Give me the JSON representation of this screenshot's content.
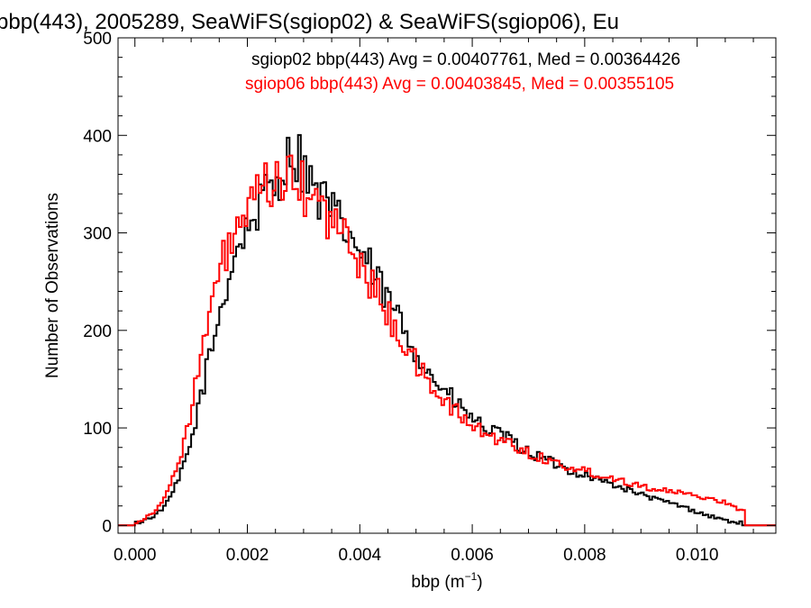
{
  "chart_data": {
    "type": "histogram",
    "title": "bbp(443), 2005289, SeaWiFS(sgiop02) & SeaWiFS(sgiop06), Eu",
    "xlabel": "bbp (m",
    "xlabel_sup": "−1",
    "xlabel_close": ")",
    "ylabel": "Number of Observations",
    "xlim": [
      -0.0003,
      0.0114
    ],
    "ylim": [
      -8,
      500
    ],
    "xticks": [
      0.0,
      0.002,
      0.004,
      0.006,
      0.008,
      0.01
    ],
    "xtick_labels": [
      "0.000",
      "0.002",
      "0.004",
      "0.006",
      "0.008",
      "0.010"
    ],
    "yticks": [
      0,
      100,
      200,
      300,
      400,
      500
    ],
    "ytick_labels": [
      "0",
      "100",
      "200",
      "300",
      "400",
      "500"
    ],
    "bin_width": 5e-05,
    "grid": false,
    "legend_position": "top-right",
    "series": [
      {
        "name": "sgiop02",
        "color": "#000000",
        "legend": "sgiop02 bbp(443) Avg = 0.00407761, Med = 0.00364426",
        "points": [
          [
            0.0,
            2
          ],
          [
            0.0002,
            6
          ],
          [
            0.0004,
            12
          ],
          [
            0.0006,
            25
          ],
          [
            0.0008,
            50
          ],
          [
            0.001,
            85
          ],
          [
            0.0012,
            140
          ],
          [
            0.0014,
            190
          ],
          [
            0.0016,
            240
          ],
          [
            0.0018,
            282
          ],
          [
            0.002,
            305
          ],
          [
            0.0022,
            325
          ],
          [
            0.0024,
            345
          ],
          [
            0.0026,
            362
          ],
          [
            0.0028,
            385
          ],
          [
            0.003,
            370
          ],
          [
            0.0032,
            340
          ],
          [
            0.0034,
            330
          ],
          [
            0.0036,
            312
          ],
          [
            0.0038,
            300
          ],
          [
            0.004,
            280
          ],
          [
            0.0042,
            262
          ],
          [
            0.0044,
            240
          ],
          [
            0.0046,
            222
          ],
          [
            0.0048,
            200
          ],
          [
            0.005,
            180
          ],
          [
            0.0052,
            158
          ],
          [
            0.0054,
            145
          ],
          [
            0.0056,
            132
          ],
          [
            0.0058,
            120
          ],
          [
            0.006,
            110
          ],
          [
            0.0062,
            100
          ],
          [
            0.0064,
            95
          ],
          [
            0.0066,
            90
          ],
          [
            0.0068,
            82
          ],
          [
            0.007,
            75
          ],
          [
            0.0072,
            70
          ],
          [
            0.0074,
            65
          ],
          [
            0.0076,
            60
          ],
          [
            0.0078,
            55
          ],
          [
            0.008,
            52
          ],
          [
            0.0082,
            48
          ],
          [
            0.0084,
            44
          ],
          [
            0.0086,
            40
          ],
          [
            0.0088,
            36
          ],
          [
            0.009,
            32
          ],
          [
            0.0092,
            28
          ],
          [
            0.0094,
            25
          ],
          [
            0.0096,
            22
          ],
          [
            0.0098,
            18
          ],
          [
            0.01,
            14
          ],
          [
            0.0102,
            10
          ],
          [
            0.0104,
            7
          ],
          [
            0.0106,
            4
          ],
          [
            0.0108,
            2
          ]
        ]
      },
      {
        "name": "sgiop06",
        "color": "#ff0000",
        "legend": "sgiop06 bbp(443) Avg = 0.00403845, Med = 0.00355105",
        "points": [
          [
            0.0,
            3
          ],
          [
            0.0002,
            8
          ],
          [
            0.0004,
            18
          ],
          [
            0.0006,
            35
          ],
          [
            0.0008,
            70
          ],
          [
            0.001,
            118
          ],
          [
            0.0012,
            180
          ],
          [
            0.0014,
            232
          ],
          [
            0.0016,
            278
          ],
          [
            0.0018,
            300
          ],
          [
            0.002,
            318
          ],
          [
            0.0022,
            335
          ],
          [
            0.0024,
            350
          ],
          [
            0.0026,
            355
          ],
          [
            0.0028,
            352
          ],
          [
            0.003,
            345
          ],
          [
            0.0032,
            332
          ],
          [
            0.0034,
            318
          ],
          [
            0.0036,
            305
          ],
          [
            0.0038,
            290
          ],
          [
            0.004,
            270
          ],
          [
            0.0042,
            248
          ],
          [
            0.0044,
            228
          ],
          [
            0.0046,
            206
          ],
          [
            0.0048,
            186
          ],
          [
            0.005,
            165
          ],
          [
            0.0052,
            148
          ],
          [
            0.0054,
            135
          ],
          [
            0.0056,
            122
          ],
          [
            0.0058,
            112
          ],
          [
            0.006,
            102
          ],
          [
            0.0062,
            95
          ],
          [
            0.0064,
            90
          ],
          [
            0.0066,
            86
          ],
          [
            0.0068,
            80
          ],
          [
            0.007,
            75
          ],
          [
            0.0072,
            70
          ],
          [
            0.0074,
            66
          ],
          [
            0.0076,
            62
          ],
          [
            0.0078,
            58
          ],
          [
            0.008,
            56
          ],
          [
            0.0082,
            53
          ],
          [
            0.0084,
            50
          ],
          [
            0.0086,
            47
          ],
          [
            0.0088,
            44
          ],
          [
            0.009,
            41
          ],
          [
            0.0092,
            38
          ],
          [
            0.0094,
            36
          ],
          [
            0.0096,
            34
          ],
          [
            0.0098,
            32
          ],
          [
            0.01,
            30
          ],
          [
            0.0102,
            28
          ],
          [
            0.0104,
            25
          ],
          [
            0.0106,
            22
          ],
          [
            0.0108,
            15
          ]
        ]
      }
    ]
  }
}
